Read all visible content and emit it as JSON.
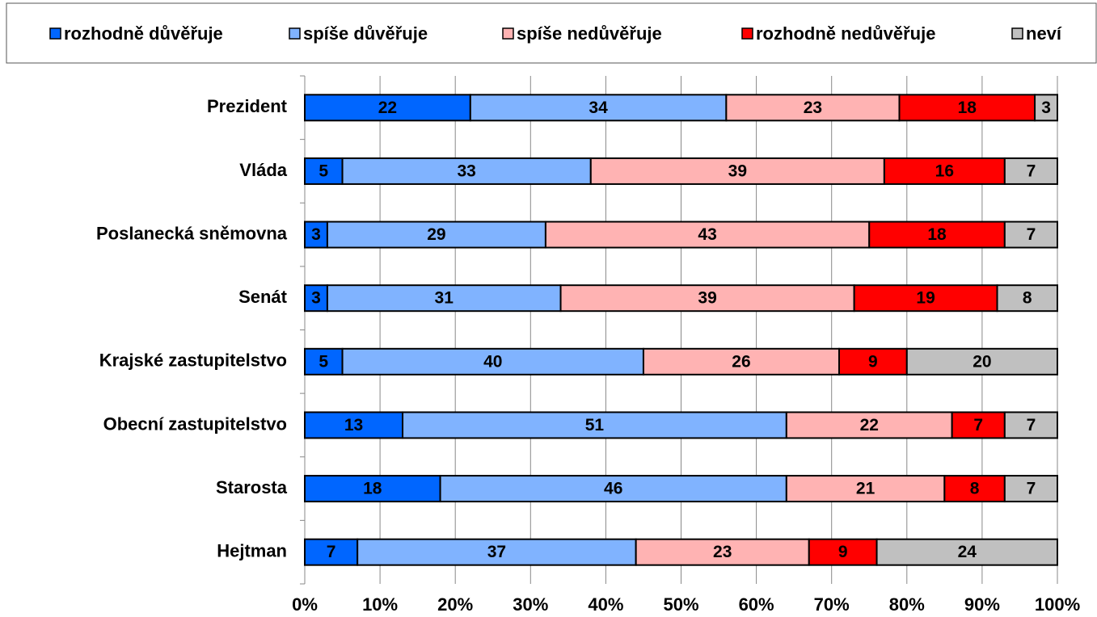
{
  "chart_data": {
    "type": "stacked-bar-horizontal",
    "categories": [
      "Prezident",
      "Vláda",
      "Poslanecká sněmovna",
      "Senát",
      "Krajské zastupitelstvo",
      "Obecní zastupitelstvo",
      "Starosta",
      "Hejtman"
    ],
    "series": [
      {
        "name": "rozhodně důvěřuje",
        "color": "#0066ff",
        "values": [
          22,
          5,
          3,
          3,
          5,
          13,
          18,
          7
        ]
      },
      {
        "name": "spíše důvěřuje",
        "color": "#80b3ff",
        "values": [
          34,
          33,
          29,
          31,
          40,
          51,
          46,
          37
        ]
      },
      {
        "name": "spíše nedůvěřuje",
        "color": "#ffb3b3",
        "values": [
          23,
          39,
          43,
          39,
          26,
          22,
          21,
          23
        ]
      },
      {
        "name": "rozhodně nedůvěřuje",
        "color": "#ff0000",
        "values": [
          18,
          16,
          18,
          19,
          9,
          7,
          8,
          9
        ]
      },
      {
        "name": "neví",
        "color": "#c0c0c0",
        "values": [
          3,
          7,
          7,
          8,
          20,
          7,
          7,
          24
        ]
      }
    ],
    "xlim": [
      0,
      100
    ],
    "xticks": [
      {
        "value": 0,
        "label": "0%"
      },
      {
        "value": 10,
        "label": "10%"
      },
      {
        "value": 20,
        "label": "20%"
      },
      {
        "value": 30,
        "label": "30%"
      },
      {
        "value": 40,
        "label": "40%"
      },
      {
        "value": 50,
        "label": "50%"
      },
      {
        "value": 60,
        "label": "60%"
      },
      {
        "value": 70,
        "label": "70%"
      },
      {
        "value": 80,
        "label": "80%"
      },
      {
        "value": 90,
        "label": "90%"
      },
      {
        "value": 100,
        "label": "100%"
      }
    ],
    "grid": true,
    "legend": "top"
  }
}
